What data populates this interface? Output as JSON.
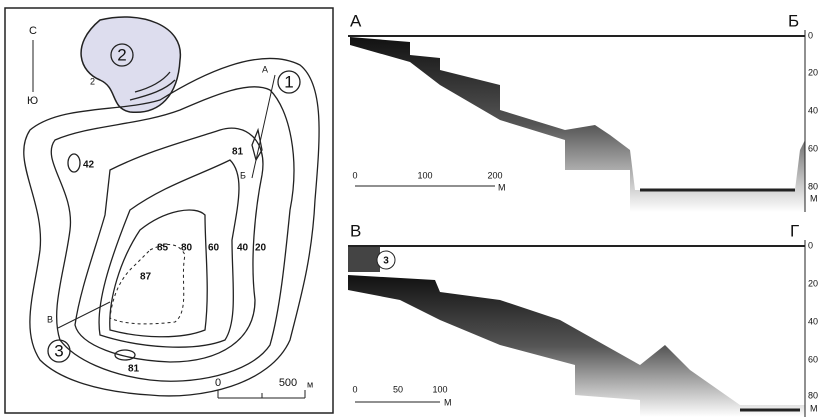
{
  "map": {
    "north": "С",
    "south": "Ю",
    "lake_2": "2",
    "point_2": "2",
    "depth_42": "42",
    "depth_81_north": "81",
    "lake_1": "1",
    "point_a": "А",
    "point_b": "Б",
    "iso_85": "85",
    "iso_80": "80",
    "iso_60": "60",
    "iso_40": "40",
    "iso_20": "20",
    "depth_87": "87",
    "point_v": "В",
    "lake_3": "3",
    "depth_81_south": "81",
    "scale": {
      "zero": "0",
      "end": "500",
      "unit": "м"
    }
  },
  "profile_ab": {
    "start": "А",
    "end": "Б",
    "depth_ticks": [
      "0",
      "20",
      "40",
      "60",
      "80"
    ],
    "depth_unit": "М",
    "scale": {
      "zero": "0",
      "mid": "100",
      "end": "200",
      "unit": "М"
    }
  },
  "profile_vg": {
    "start": "В",
    "end": "Г",
    "marker": "3",
    "depth_ticks": [
      "0",
      "20",
      "40",
      "60",
      "80"
    ],
    "depth_unit": "М",
    "scale": {
      "zero": "0",
      "mid": "50",
      "end": "100",
      "unit": "М"
    }
  }
}
